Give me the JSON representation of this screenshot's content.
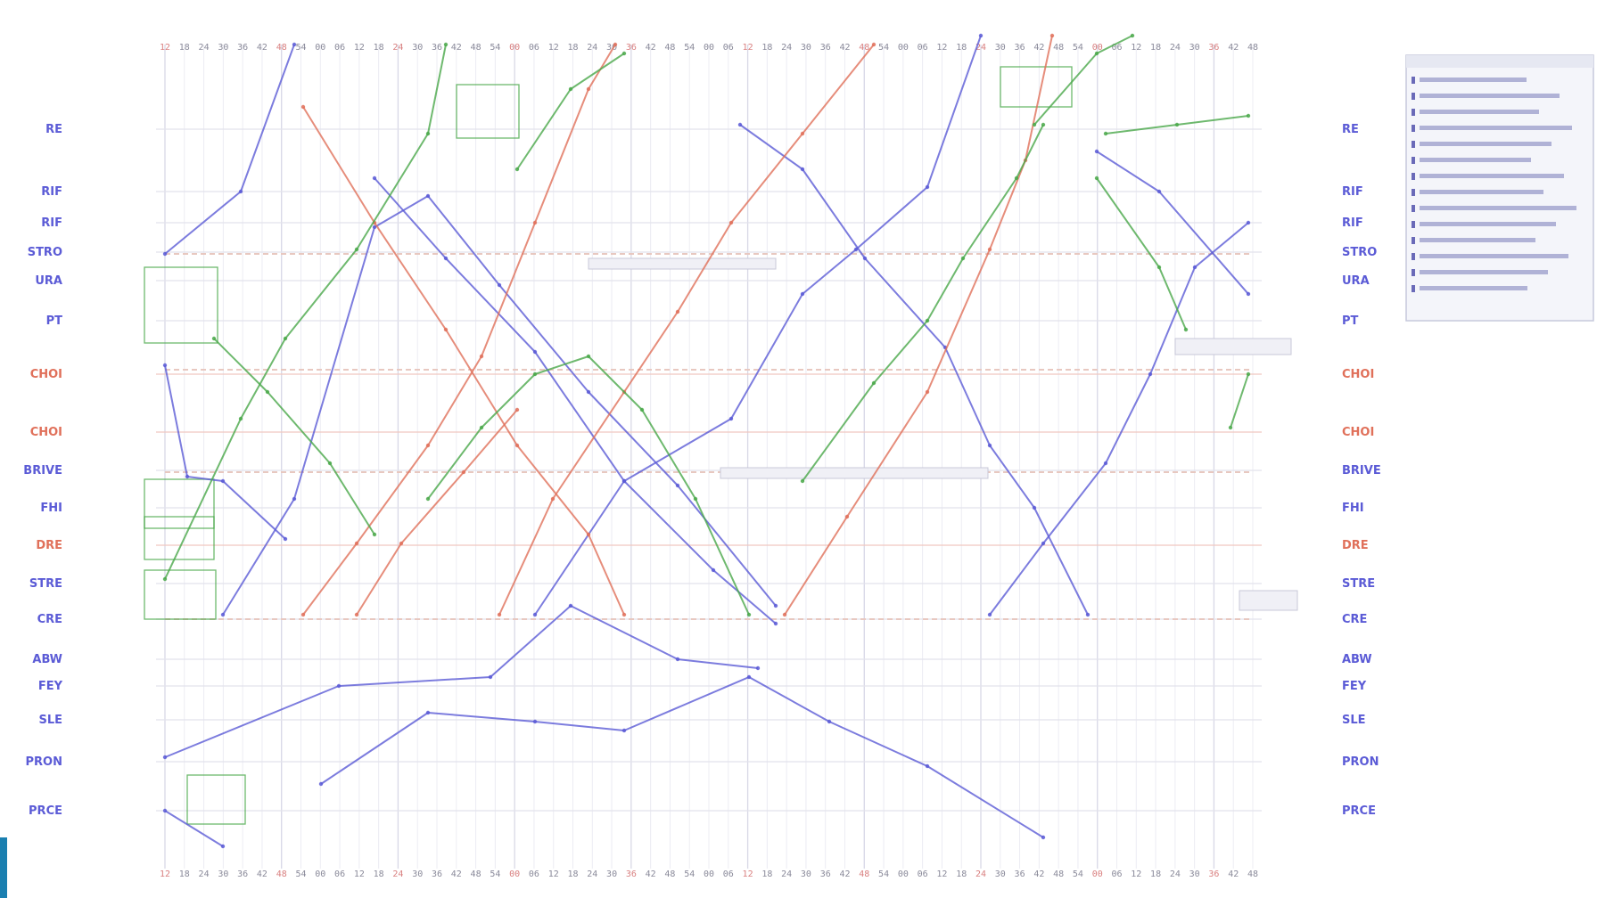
{
  "title": "",
  "colors": {
    "blue": "#5b5bd6",
    "red": "#e0705a",
    "green": "#4aa84a",
    "grid": "#e6e6ee",
    "accent": "#1a7fb0"
  },
  "top_ticks": [
    "12",
    "18",
    "24",
    "30",
    "36",
    "42",
    "48",
    "54",
    "00",
    "06",
    "12",
    "18",
    "24",
    "30",
    "36",
    "42",
    "48",
    "54",
    "00",
    "06",
    "12",
    "18",
    "24",
    "30",
    "36",
    "42",
    "48",
    "54",
    "00",
    "06",
    "12",
    "18",
    "24",
    "30",
    "36",
    "42",
    "48",
    "54",
    "00",
    "06",
    "12",
    "18",
    "24",
    "30",
    "36",
    "42",
    "48",
    "54",
    "00",
    "06",
    "12",
    "18",
    "24",
    "30",
    "36",
    "42",
    "48"
  ],
  "bottom_ticks": [
    "12",
    "18",
    "24",
    "30",
    "36",
    "42",
    "48",
    "54",
    "00",
    "06",
    "12",
    "18",
    "24",
    "30",
    "36",
    "42",
    "48",
    "54",
    "00",
    "06",
    "12",
    "18",
    "24",
    "30",
    "36",
    "42",
    "48",
    "54",
    "00",
    "06",
    "12",
    "18",
    "24",
    "30",
    "36",
    "42",
    "48",
    "54",
    "00",
    "06",
    "12",
    "18",
    "24",
    "30",
    "36",
    "42",
    "48",
    "54",
    "00",
    "06",
    "12",
    "18",
    "24",
    "30",
    "36",
    "42",
    "48"
  ],
  "left_labels": [
    {
      "text": "RE",
      "color": "blue"
    },
    {
      "text": "RIF",
      "color": "blue"
    },
    {
      "text": "RIF",
      "color": "blue"
    },
    {
      "text": "STRO",
      "color": "blue"
    },
    {
      "text": "URA",
      "color": "blue"
    },
    {
      "text": "PT",
      "color": "blue"
    },
    {
      "text": "CHOI",
      "color": "red"
    },
    {
      "text": "CHOI",
      "color": "red"
    },
    {
      "text": "BRIVE",
      "color": "blue"
    },
    {
      "text": "FHI",
      "color": "blue"
    },
    {
      "text": "DRE",
      "color": "red"
    },
    {
      "text": "STRE",
      "color": "blue"
    },
    {
      "text": "CRE",
      "color": "blue"
    },
    {
      "text": "ABW",
      "color": "blue"
    },
    {
      "text": "FEY",
      "color": "blue"
    },
    {
      "text": "SLE",
      "color": "blue"
    },
    {
      "text": "PRON",
      "color": "blue"
    },
    {
      "text": "PRCE",
      "color": "blue"
    }
  ],
  "right_labels": [
    {
      "text": "RE",
      "color": "blue"
    },
    {
      "text": "RIF",
      "color": "blue"
    },
    {
      "text": "RIF",
      "color": "blue"
    },
    {
      "text": "STRO",
      "color": "blue"
    },
    {
      "text": "URA",
      "color": "blue"
    },
    {
      "text": "PT",
      "color": "blue"
    },
    {
      "text": "CHOI",
      "color": "red"
    },
    {
      "text": "CHOI",
      "color": "red"
    },
    {
      "text": "BRIVE",
      "color": "blue"
    },
    {
      "text": "FHI",
      "color": "blue"
    },
    {
      "text": "DRE",
      "color": "red"
    },
    {
      "text": "STRE",
      "color": "blue"
    },
    {
      "text": "CRE",
      "color": "blue"
    },
    {
      "text": "ABW",
      "color": "blue"
    },
    {
      "text": "FEY",
      "color": "blue"
    },
    {
      "text": "SLE",
      "color": "blue"
    },
    {
      "text": "PRON",
      "color": "blue"
    },
    {
      "text": "PRCE",
      "color": "blue"
    }
  ],
  "footer_note": "",
  "legend_lines": [
    "",
    "",
    "",
    "",
    "",
    "",
    "",
    "",
    "",
    "",
    "",
    "",
    "",
    ""
  ]
}
